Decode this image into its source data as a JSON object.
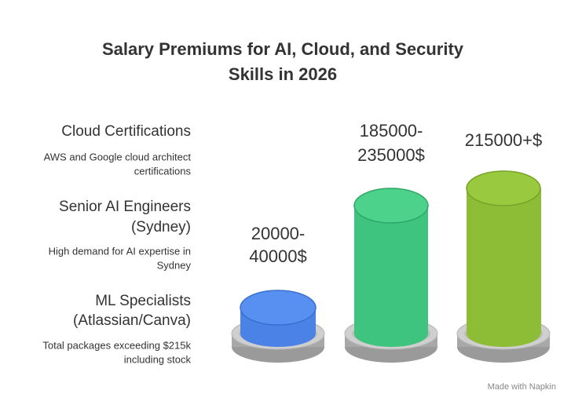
{
  "header": {
    "title_lines": [
      "Salary Premiums for AI, Cloud, and Security",
      "Skills in 2026"
    ]
  },
  "items": [
    {
      "label_lines": [
        "Cloud Certifications"
      ],
      "description_lines": [
        "AWS and Google cloud architect",
        "certifications"
      ]
    },
    {
      "label_lines": [
        "Senior AI Engineers",
        "(Sydney)"
      ],
      "description_lines": [
        "High demand for AI expertise in",
        "Sydney"
      ]
    },
    {
      "label_lines": [
        "ML Specialists",
        "(Atlassian/Canva)"
      ],
      "description_lines": [
        "Total packages exceeding $215k",
        "including stock"
      ]
    }
  ],
  "bars": [
    {
      "label_lines": [
        "20000-",
        "40000$"
      ]
    },
    {
      "label_lines": [
        "185000-",
        "235000$"
      ]
    },
    {
      "label_lines": [
        "215000+$"
      ]
    }
  ],
  "footer": {
    "credit": "Made with Napkin"
  }
}
